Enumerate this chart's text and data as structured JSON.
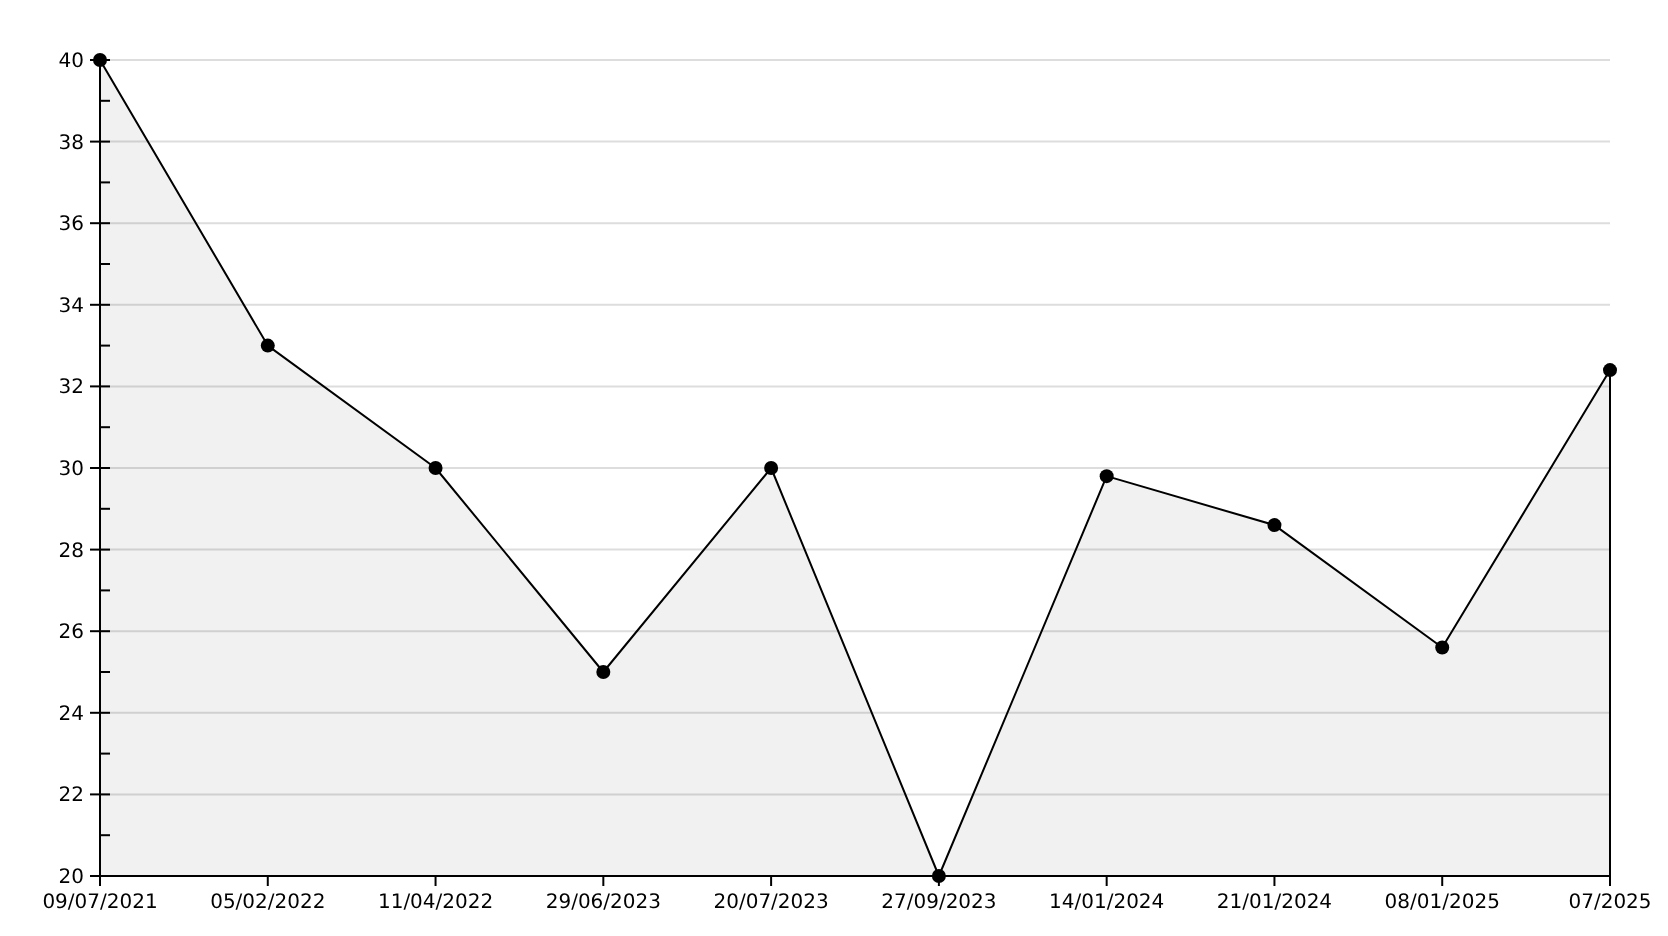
{
  "chart_data": {
    "type": "area",
    "categories": [
      "09/07/2021",
      "05/02/2022",
      "11/04/2022",
      "29/06/2023",
      "20/07/2023",
      "27/09/2023",
      "14/01/2024",
      "21/01/2024",
      "08/01/2025",
      "07/2025"
    ],
    "series": [
      {
        "color": "#000000",
        "values": [
          40,
          33,
          30,
          25,
          30,
          20,
          29.8,
          28.6,
          25.6,
          32.4
        ]
      }
    ],
    "ylim": [
      20,
      40
    ],
    "yticks": [
      20,
      {
        "value": 21,
        "label": null
      },
      22,
      {
        "value": 23,
        "label": null
      },
      24,
      {
        "value": 25,
        "label": null
      },
      26,
      {
        "value": 27,
        "label": null
      },
      28,
      {
        "value": 29,
        "label": null
      },
      30,
      {
        "value": 31,
        "label": null
      },
      32,
      {
        "value": 33,
        "label": null
      },
      34,
      {
        "value": 35,
        "label": null
      },
      36,
      {
        "value": 37,
        "label": null
      },
      38,
      {
        "value": 39,
        "label": null
      },
      40
    ],
    "grid": "y",
    "marker": "circle",
    "line_style": "solid"
  }
}
